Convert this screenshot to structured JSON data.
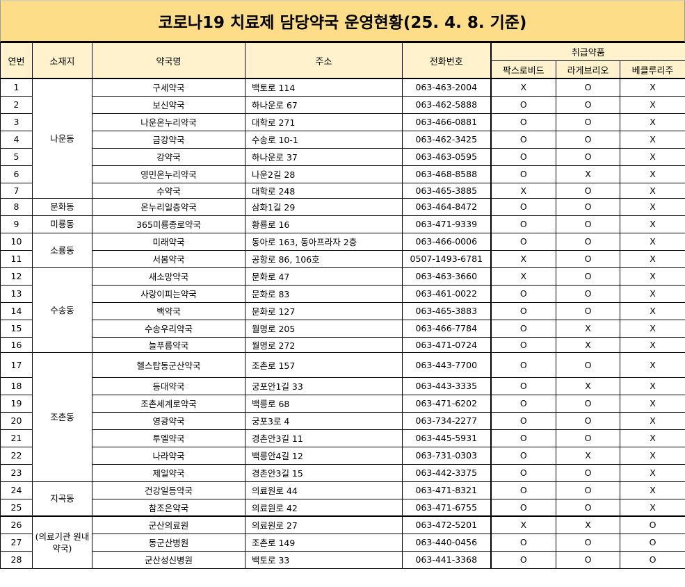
{
  "title": "코로나19 치료제 담당약국 운영현황(25. 4. 8. 기준)",
  "headers": {
    "no": "연번",
    "district": "소재지",
    "name": "약국명",
    "address": "주소",
    "phone": "전화번호",
    "drugs": "취급약품",
    "drug1": "팍스로비드",
    "drug2": "라게브리오",
    "drug3": "베클루리주"
  },
  "rows": [
    {
      "no": "1",
      "district": "나운동",
      "name": "구세약국",
      "address": "백토로 114",
      "phone": "063-463-2004",
      "d1": "X",
      "d2": "O",
      "d3": "X"
    },
    {
      "no": "2",
      "district": "나운동",
      "name": "보신약국",
      "address": "하나운로 67",
      "phone": "063-462-5888",
      "d1": "O",
      "d2": "O",
      "d3": "X"
    },
    {
      "no": "3",
      "district": "나운동",
      "name": "나운온누리약국",
      "address": "대학로 271",
      "phone": "063-466-0881",
      "d1": "O",
      "d2": "O",
      "d3": "X"
    },
    {
      "no": "4",
      "district": "나운동",
      "name": "금강약국",
      "address": "수송로 10-1",
      "phone": "063-462-3425",
      "d1": "O",
      "d2": "O",
      "d3": "X"
    },
    {
      "no": "5",
      "district": "나운동",
      "name": "강약국",
      "address": "하나운로 37",
      "phone": "063-463-0595",
      "d1": "O",
      "d2": "O",
      "d3": "X"
    },
    {
      "no": "6",
      "district": "나운동",
      "name": "영민온누리약국",
      "address": "나운2길 28",
      "phone": "063-468-8588",
      "d1": "O",
      "d2": "X",
      "d3": "X"
    },
    {
      "no": "7",
      "district": "나운동",
      "name": "수약국",
      "address": "대학로 248",
      "phone": "063-465-3885",
      "d1": "X",
      "d2": "O",
      "d3": "X"
    },
    {
      "no": "8",
      "district": "문화동",
      "name": "온누리일층약국",
      "address": "삼화1길 29",
      "phone": "063-464-8472",
      "d1": "O",
      "d2": "O",
      "d3": "X"
    },
    {
      "no": "9",
      "district": "미룡동",
      "name": "365미룡종로약국",
      "address": "황룡로 16",
      "phone": "063-471-9339",
      "d1": "O",
      "d2": "O",
      "d3": "X"
    },
    {
      "no": "10",
      "district": "소룡동",
      "name": "미래약국",
      "address": "동아로 163, 동아프라자 2층",
      "phone": "063-466-0006",
      "d1": "O",
      "d2": "O",
      "d3": "X"
    },
    {
      "no": "11",
      "district": "소룡동",
      "name": "서봄약국",
      "address": "공항로 86, 106호",
      "phone": "0507-1493-6781",
      "d1": "X",
      "d2": "O",
      "d3": "X"
    },
    {
      "no": "12",
      "district": "수송동",
      "name": "새소망약국",
      "address": "문화로 47",
      "phone": "063-463-3660",
      "d1": "X",
      "d2": "O",
      "d3": "X"
    },
    {
      "no": "13",
      "district": "수송동",
      "name": "사랑이피는약국",
      "address": "문화로 83",
      "phone": "063-461-0022",
      "d1": "O",
      "d2": "O",
      "d3": "X"
    },
    {
      "no": "14",
      "district": "수송동",
      "name": "백약국",
      "address": "문화로 127",
      "phone": "063-465-3883",
      "d1": "O",
      "d2": "O",
      "d3": "X"
    },
    {
      "no": "15",
      "district": "수송동",
      "name": "수송우리약국",
      "address": "월명로 205",
      "phone": "063-466-7784",
      "d1": "O",
      "d2": "X",
      "d3": "X"
    },
    {
      "no": "16",
      "district": "수송동",
      "name": "늘푸름약국",
      "address": "월명로 272",
      "phone": "063-471-0724",
      "d1": "O",
      "d2": "X",
      "d3": "X"
    },
    {
      "no": "17",
      "district": "조촌동",
      "name": "헬스탑동군산약국",
      "address": "조촌로 157",
      "phone": "063-443-7700",
      "d1": "O",
      "d2": "O",
      "d3": "X"
    },
    {
      "no": "18",
      "district": "조촌동",
      "name": "등대약국",
      "address": "궁포안1길 33",
      "phone": "063-443-3335",
      "d1": "O",
      "d2": "X",
      "d3": "X"
    },
    {
      "no": "19",
      "district": "조촌동",
      "name": "조촌세계로약국",
      "address": "백릉로 68",
      "phone": "063-471-6202",
      "d1": "O",
      "d2": "O",
      "d3": "X"
    },
    {
      "no": "20",
      "district": "조촌동",
      "name": "영광약국",
      "address": "궁포3로 4",
      "phone": "063-734-2277",
      "d1": "O",
      "d2": "O",
      "d3": "X"
    },
    {
      "no": "21",
      "district": "조촌동",
      "name": "투엘약국",
      "address": "경촌안3길 11",
      "phone": "063-445-5931",
      "d1": "O",
      "d2": "O",
      "d3": "X"
    },
    {
      "no": "22",
      "district": "조촌동",
      "name": "나라약국",
      "address": "백릉안4길 12",
      "phone": "063-731-0303",
      "d1": "O",
      "d2": "X",
      "d3": "X"
    },
    {
      "no": "23",
      "district": "조촌동",
      "name": "제일약국",
      "address": "경촌안3길 15",
      "phone": "063-442-3375",
      "d1": "O",
      "d2": "O",
      "d3": "X"
    },
    {
      "no": "24",
      "district": "지곡동",
      "name": "건강일등약국",
      "address": "의료원로 44",
      "phone": "063-471-8321",
      "d1": "O",
      "d2": "O",
      "d3": "X"
    },
    {
      "no": "25",
      "district": "지곡동",
      "name": "참조은약국",
      "address": "의료원로 42",
      "phone": "063-471-6755",
      "d1": "O",
      "d2": "O",
      "d3": "X"
    },
    {
      "no": "26",
      "district": "(의료기관 원내약국)",
      "name": "군산의료원",
      "address": "의료원로 27",
      "phone": "063-472-5201",
      "d1": "X",
      "d2": "X",
      "d3": "O"
    },
    {
      "no": "27",
      "district": "(의료기관 원내약국)",
      "name": "동군산병원",
      "address": "조촌로 149",
      "phone": "063-440-0456",
      "d1": "O",
      "d2": "O",
      "d3": "O"
    },
    {
      "no": "28",
      "district": "(의료기관 원내약국)",
      "name": "군산성신병원",
      "address": "백토로 33",
      "phone": "063-441-3368",
      "d1": "O",
      "d2": "O",
      "d3": "O"
    }
  ],
  "colors": {
    "title_bg": "#FDDD87",
    "header_bg": "#FFF2CC"
  }
}
